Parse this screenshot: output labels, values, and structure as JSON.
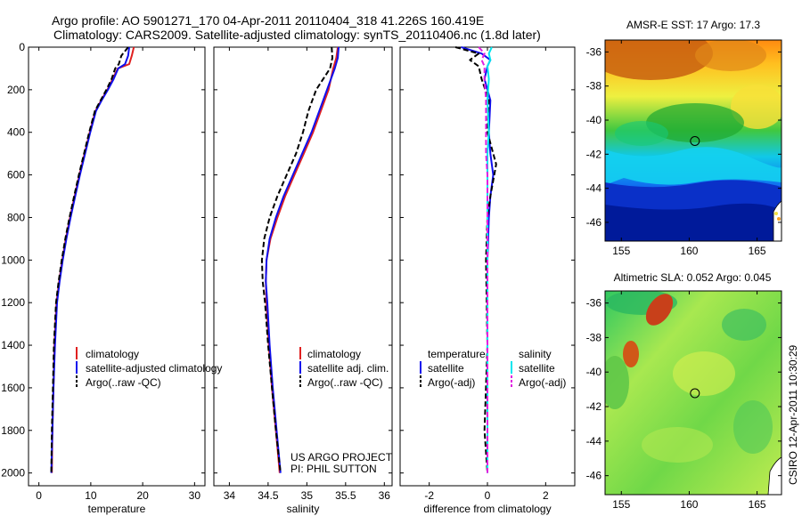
{
  "header": {
    "line1": "Argo profile: AO 5901271_170 04-Apr-2011 20110404_318 41.226S 160.419E",
    "line2": "Climatology: CARS2009. Satellite-adjusted climatology: synTS_20110406.nc (1.8d later)"
  },
  "credit": {
    "project": "US ARGO PROJECT",
    "pi": "PI: PHIL SUTTON",
    "stamp": "CSIRO 12-Apr-2011 10:30:29"
  },
  "colors": {
    "climatology": "#e02020",
    "satellite": "#1010ee",
    "argo": "#000000",
    "sat_salinity": "#00e5ee",
    "argo_salinity": "#e020e0"
  },
  "chart_data": [
    {
      "type": "line",
      "id": "temperature",
      "xlabel": "temperature",
      "xlim": [
        -2,
        32
      ],
      "xticks": [
        0,
        10,
        20,
        30
      ],
      "ylim": [
        2060,
        0
      ],
      "yticks": [
        0,
        200,
        400,
        600,
        800,
        1000,
        1200,
        1400,
        1600,
        1800,
        2000
      ],
      "legend": [
        "climatology",
        "satellite-adjusted climatology",
        "Argo(..raw -QC)"
      ],
      "legend_placement": "lower-right",
      "series": [
        {
          "name": "climatology",
          "style": "red-solid",
          "x": [
            18.3,
            17.9,
            17.4,
            15.2,
            14.2,
            13.2,
            12.0,
            10.9,
            9.8,
            8.8,
            7.8,
            6.9,
            6.0,
            5.2,
            4.5,
            3.9,
            3.4,
            3.0,
            2.8,
            2.6,
            2.5
          ],
          "y": [
            0,
            40,
            80,
            100,
            150,
            200,
            250,
            300,
            400,
            500,
            600,
            700,
            800,
            900,
            1000,
            1100,
            1200,
            1400,
            1600,
            1800,
            2000
          ]
        },
        {
          "name": "satellite-adjusted climatology",
          "style": "blue-solid",
          "x": [
            17.4,
            17.2,
            16.6,
            15.3,
            14.4,
            13.3,
            12.1,
            11.0,
            9.9,
            8.9,
            7.9,
            7.0,
            6.1,
            5.3,
            4.6,
            4.0,
            3.5,
            3.1,
            2.8,
            2.6,
            2.4
          ],
          "y": [
            0,
            40,
            80,
            100,
            150,
            200,
            250,
            300,
            400,
            500,
            600,
            700,
            800,
            900,
            1000,
            1100,
            1200,
            1400,
            1600,
            1800,
            2000
          ]
        },
        {
          "name": "Argo(..raw -QC)",
          "style": "black-dashed",
          "x": [
            17.2,
            15.9,
            15.4,
            14.7,
            14.0,
            13.0,
            11.9,
            10.8,
            9.7,
            8.7,
            7.7,
            6.8,
            5.9,
            5.1,
            4.4,
            3.8,
            3.3,
            2.9,
            2.7,
            2.5,
            2.4
          ],
          "y": [
            0,
            40,
            80,
            100,
            150,
            200,
            250,
            300,
            400,
            500,
            600,
            700,
            800,
            900,
            1000,
            1100,
            1200,
            1400,
            1600,
            1800,
            2000
          ]
        }
      ]
    },
    {
      "type": "line",
      "id": "salinity",
      "xlabel": "salinity",
      "xlim": [
        33.8,
        36.1
      ],
      "xticks": [
        34,
        34.5,
        35,
        35.5,
        36
      ],
      "ylim": [
        2060,
        0
      ],
      "legend": [
        "climatology",
        "satellite adj. clim.",
        "Argo(..raw -QC)"
      ],
      "legend_placement": "lower-right",
      "series": [
        {
          "name": "climatology",
          "style": "red-solid",
          "x": [
            35.4,
            35.38,
            35.34,
            35.28,
            35.18,
            35.08,
            34.96,
            34.84,
            34.72,
            34.62,
            34.53,
            34.48,
            34.47,
            34.48,
            34.51,
            34.55,
            34.6,
            34.65
          ],
          "y": [
            0,
            50,
            100,
            200,
            300,
            400,
            500,
            600,
            700,
            800,
            900,
            1000,
            1100,
            1200,
            1400,
            1600,
            1800,
            2000
          ]
        },
        {
          "name": "satellite adj. clim.",
          "style": "blue-solid",
          "x": [
            35.41,
            35.4,
            35.36,
            35.26,
            35.16,
            35.06,
            34.94,
            34.82,
            34.7,
            34.6,
            34.52,
            34.48,
            34.47,
            34.49,
            34.52,
            34.56,
            34.61,
            34.66
          ],
          "y": [
            0,
            50,
            100,
            200,
            300,
            400,
            500,
            600,
            700,
            800,
            900,
            1000,
            1100,
            1200,
            1400,
            1600,
            1800,
            2000
          ]
        },
        {
          "name": "Argo(..raw -QC)",
          "style": "black-dashed",
          "x": [
            35.32,
            35.33,
            35.3,
            35.12,
            35.02,
            34.95,
            34.86,
            34.74,
            34.62,
            34.52,
            34.45,
            34.42,
            34.43,
            34.46,
            34.5,
            34.55,
            34.6,
            34.66
          ],
          "y": [
            0,
            50,
            100,
            200,
            300,
            400,
            500,
            600,
            700,
            800,
            900,
            1000,
            1100,
            1200,
            1400,
            1600,
            1800,
            2000
          ]
        }
      ]
    },
    {
      "type": "line",
      "id": "difference",
      "xlabel": "difference from climatology",
      "xlim": [
        -3,
        3
      ],
      "xticks": [
        -2,
        0,
        2
      ],
      "ylim": [
        2060,
        0
      ],
      "legend_columns": [
        {
          "header": "temperature",
          "entries": [
            "satellite",
            "Argo(-adj)"
          ]
        },
        {
          "header": "salinity",
          "entries": [
            "satellite",
            "Argo(-adj)"
          ]
        }
      ],
      "legend_placement": "lower-center",
      "series": [
        {
          "name": "temperature satellite",
          "style": "blue-solid",
          "x": [
            -0.9,
            -0.2,
            0.1,
            0.0,
            -0.1,
            0.1,
            0.05,
            0.1,
            0.2,
            0.1,
            0.05,
            0.0,
            0.0,
            0.0,
            0.0
          ],
          "y": [
            0,
            30,
            60,
            90,
            150,
            250,
            400,
            500,
            600,
            700,
            800,
            1000,
            1400,
            1800,
            2000
          ]
        },
        {
          "name": "temperature Argo(-adj)",
          "style": "black-dashed",
          "x": [
            -1.1,
            -0.3,
            -0.6,
            -0.3,
            -0.2,
            0.05,
            0.0,
            0.2,
            0.3,
            0.1,
            0.0,
            -0.05,
            0.0,
            -0.1,
            0.0
          ],
          "y": [
            0,
            30,
            60,
            90,
            150,
            250,
            400,
            500,
            550,
            700,
            800,
            1000,
            1400,
            1800,
            2000
          ]
        },
        {
          "name": "salinity satellite",
          "style": "cyan-solid",
          "x": [
            0.15,
            0.05,
            0.1,
            0.0,
            0.05,
            0.0,
            0.05,
            0.0,
            0.0,
            0.0,
            0.0,
            0.0,
            0.0,
            0.0,
            0.0
          ],
          "y": [
            0,
            30,
            60,
            90,
            150,
            250,
            400,
            500,
            600,
            700,
            800,
            1000,
            1400,
            1800,
            2000
          ]
        },
        {
          "name": "salinity Argo(-adj)",
          "style": "magenta-dashed",
          "x": [
            -0.3,
            -0.1,
            -0.2,
            -0.1,
            -0.1,
            -0.05,
            -0.05,
            -0.05,
            0.0,
            0.0,
            0.0,
            0.0,
            0.0,
            0.0,
            0.0
          ],
          "y": [
            0,
            30,
            60,
            90,
            150,
            250,
            400,
            500,
            600,
            700,
            800,
            1000,
            1400,
            1800,
            2000
          ]
        }
      ]
    },
    {
      "type": "heatmap",
      "id": "sst-map",
      "title": "AMSR-E SST: 17 Argo: 17.3",
      "xlim": [
        153.8,
        166.8
      ],
      "ylim": [
        -47.1,
        -35.3
      ],
      "xticks": [
        155,
        160,
        165
      ],
      "yticks": [
        -36,
        -38,
        -40,
        -42,
        -44,
        -46
      ],
      "marker": {
        "lon": 160.419,
        "lat": -41.226
      }
    },
    {
      "type": "heatmap",
      "id": "sla-map",
      "title": "Altimetric SLA: 0.052 Argo: 0.045",
      "xlim": [
        153.8,
        166.8
      ],
      "ylim": [
        -47.1,
        -35.3
      ],
      "xticks": [
        155,
        160,
        165
      ],
      "yticks": [
        -36,
        -38,
        -40,
        -42,
        -44,
        -46
      ],
      "marker": {
        "lon": 160.419,
        "lat": -41.226
      }
    }
  ]
}
